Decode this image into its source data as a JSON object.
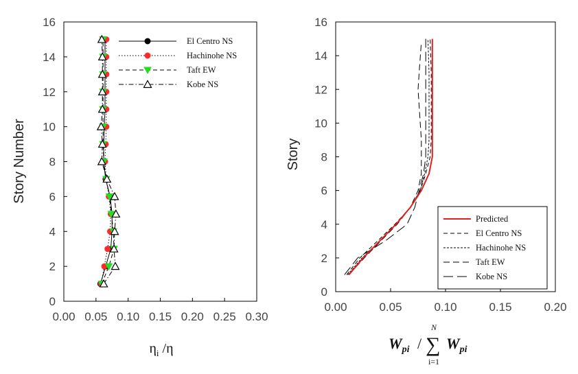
{
  "chart_data": [
    {
      "type": "line",
      "ylabel": "Story Number",
      "xlabel_symbol": "η",
      "xlabel_sub": "i",
      "xlabel_sep": " /",
      "xlabel_symbol2": "η",
      "xlim": [
        0,
        0.3
      ],
      "ylim": [
        0,
        16
      ],
      "xticks": [
        "0.00",
        "0.05",
        "0.10",
        "0.15",
        "0.20",
        "0.25",
        "0.30"
      ],
      "yticks": [
        "0",
        "2",
        "4",
        "6",
        "8",
        "10",
        "12",
        "14",
        "16"
      ],
      "grid": false,
      "legend_position": "top-right",
      "y": [
        1,
        2,
        3,
        4,
        5,
        6,
        7,
        8,
        9,
        10,
        11,
        12,
        13,
        14,
        15
      ],
      "series": [
        {
          "name": "El Centro NS",
          "marker": "circle",
          "color": "#000000",
          "dash": "solid",
          "x": [
            0.057,
            0.065,
            0.073,
            0.075,
            0.075,
            0.072,
            0.065,
            0.062,
            0.062,
            0.063,
            0.064,
            0.064,
            0.064,
            0.064,
            0.064
          ]
        },
        {
          "name": "Hachinohe NS",
          "marker": "circle",
          "color": "#ff2a2a",
          "dash": "dotted",
          "x": [
            0.058,
            0.063,
            0.068,
            0.072,
            0.073,
            0.07,
            0.066,
            0.064,
            0.065,
            0.066,
            0.066,
            0.066,
            0.066,
            0.066,
            0.066
          ]
        },
        {
          "name": "Taft EW",
          "marker": "triangle-down",
          "color": "#22dd22",
          "dash": "dashed",
          "x": [
            0.059,
            0.07,
            0.078,
            0.077,
            0.074,
            0.071,
            0.066,
            0.062,
            0.061,
            0.061,
            0.061,
            0.061,
            0.061,
            0.061,
            0.061
          ]
        },
        {
          "name": "Kobe NS",
          "marker": "triangle-up",
          "color": "#000000",
          "dash": "dashdot",
          "x": [
            0.062,
            0.08,
            0.078,
            0.079,
            0.081,
            0.079,
            0.067,
            0.059,
            0.06,
            0.058,
            0.06,
            0.06,
            0.06,
            0.06,
            0.059
          ]
        }
      ]
    },
    {
      "type": "line",
      "ylabel": "Story",
      "xlabel_num": "W",
      "xlabel_num_sub": "pi",
      "xlabel_sep": "/",
      "xlabel_sum": "∑",
      "xlabel_sum_top": "N",
      "xlabel_sum_bottom": "i=1",
      "xlabel_den": "W",
      "xlabel_den_sub": "pi",
      "xlim": [
        0,
        0.2
      ],
      "ylim": [
        0,
        16
      ],
      "xticks": [
        "0.00",
        "0.05",
        "0.10",
        "0.15",
        "0.20"
      ],
      "yticks": [
        "0",
        "2",
        "4",
        "6",
        "8",
        "10",
        "12",
        "14",
        "16"
      ],
      "grid": false,
      "legend_position": "bottom-right",
      "series": [
        {
          "name": "Predicted",
          "color": "#e02020",
          "dash": "solid",
          "x": [
            0.012,
            0.025,
            0.04,
            0.055,
            0.068,
            0.078,
            0.085,
            0.088,
            0.088,
            0.088,
            0.088
          ],
          "y": [
            1,
            2,
            3,
            4,
            5,
            6,
            7,
            8,
            9,
            12,
            15
          ]
        },
        {
          "name": "El Centro NS",
          "color": "#000000",
          "dash": "dashed",
          "x": [
            0.01,
            0.022,
            0.038,
            0.054,
            0.068,
            0.077,
            0.082,
            0.086,
            0.087,
            0.087,
            0.087,
            0.086
          ],
          "y": [
            1,
            2,
            3,
            4,
            5,
            6,
            7,
            8,
            9,
            11,
            13,
            15
          ]
        },
        {
          "name": "Hachinohe NS",
          "color": "#000000",
          "dash": "fine",
          "x": [
            0.011,
            0.024,
            0.04,
            0.055,
            0.068,
            0.077,
            0.081,
            0.084,
            0.085,
            0.085,
            0.085,
            0.084
          ],
          "y": [
            1,
            2,
            3,
            4,
            5,
            6,
            7,
            8,
            9,
            11,
            13,
            15
          ]
        },
        {
          "name": "Taft EW",
          "color": "#000000",
          "dash": "longdash",
          "x": [
            0.012,
            0.026,
            0.041,
            0.056,
            0.068,
            0.075,
            0.078,
            0.078,
            0.078,
            0.077,
            0.076,
            0.075,
            0.076,
            0.078
          ],
          "y": [
            1,
            2,
            3,
            4,
            5,
            6,
            7,
            8,
            9,
            10,
            11,
            12,
            13,
            14.8
          ]
        },
        {
          "name": "Kobe NS",
          "color": "#000000",
          "dash": "verylongdash",
          "x": [
            0.008,
            0.02,
            0.045,
            0.065,
            0.072,
            0.076,
            0.08,
            0.082,
            0.082,
            0.082,
            0.082,
            0.082
          ],
          "y": [
            1,
            2,
            3,
            4,
            5,
            6,
            7,
            8,
            9,
            11,
            13,
            15
          ]
        }
      ]
    }
  ]
}
